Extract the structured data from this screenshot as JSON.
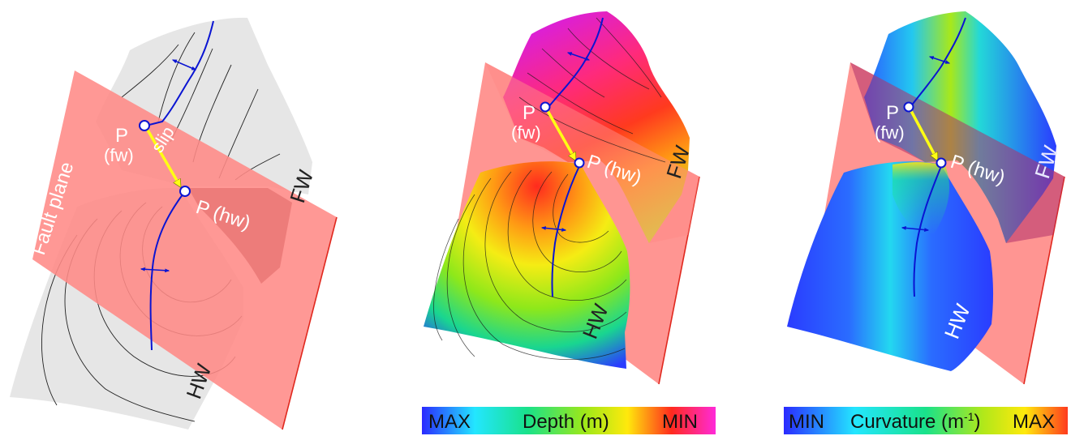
{
  "panel_left": {
    "fault_plane_label": "Fault plane",
    "point_fw_p": "P",
    "point_fw_sub": "(fw)",
    "slip_label": "slip",
    "point_hw_label": "P (hw)",
    "fw_label": "FW",
    "hw_label": "HW"
  },
  "panel_middle": {
    "point_fw_p": "P",
    "point_fw_sub": "(fw)",
    "point_hw_label": "P (hw)",
    "fw_label": "FW",
    "hw_label": "HW"
  },
  "panel_right": {
    "point_fw_p": "P",
    "point_fw_sub": "(fw)",
    "point_hw_label": "P (hw)",
    "fw_label": "FW",
    "hw_label": "HW"
  },
  "depth_bar": {
    "min_end": "MAX",
    "title": "Depth (m)",
    "max_end": "MIN",
    "colors": [
      "#2a2aff",
      "#23e6ff",
      "#19e28a",
      "#9be81a",
      "#ffe90c",
      "#ff2a1e",
      "#ff2ad8"
    ]
  },
  "curvature_bar": {
    "min_end": "MIN",
    "title_main": "Curvature (m",
    "title_sup": "-1",
    "title_close": ")",
    "max_end": "MAX",
    "colors": [
      "#2a2aff",
      "#23e6ff",
      "#19e28a",
      "#b0e81a",
      "#ffe90c",
      "#ff3a1e"
    ]
  },
  "colors": {
    "fault_plane": "#ff8a86",
    "fault_line": "#e0281e",
    "surface_gray": "#e6e6e6",
    "hinge": "#0a14d2",
    "slip_arrow": "#ffff14"
  }
}
